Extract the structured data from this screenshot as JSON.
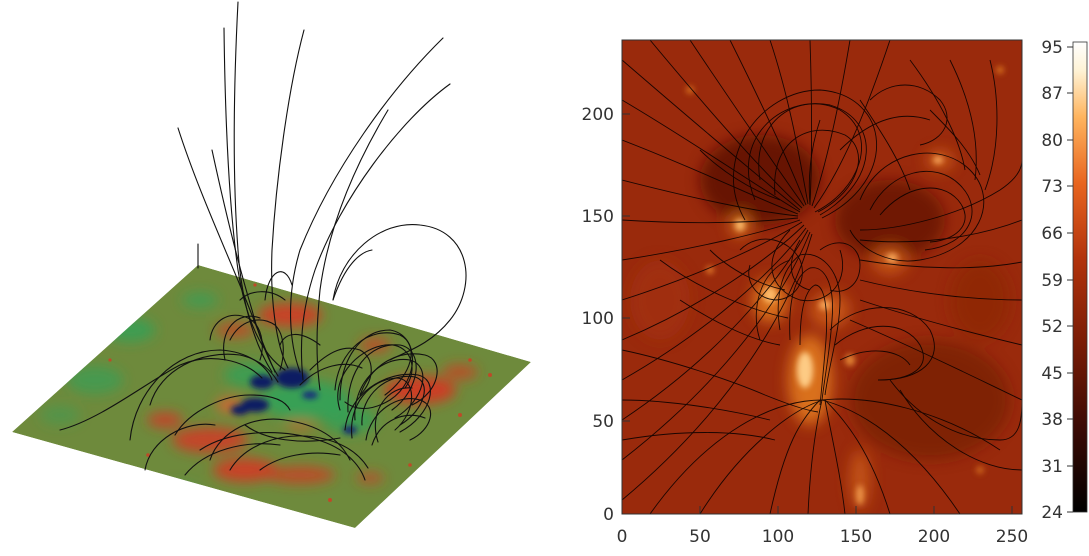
{
  "figure": {
    "left_panel": {
      "kind": "3d-field-line-rendering",
      "surface_colors": [
        "#6e8a3c",
        "#d23a24",
        "#2fa35a",
        "#0b1d63"
      ]
    },
    "right_panel": {
      "kind": "image-with-field-lines",
      "x_ticks": [
        "0",
        "50",
        "100",
        "150",
        "200",
        "250"
      ],
      "y_ticks": [
        "0",
        "50",
        "100",
        "150",
        "200"
      ],
      "colorbar_ticks": [
        "95",
        "87",
        "80",
        "73",
        "66",
        "59",
        "52",
        "45",
        "38",
        "31",
        "24"
      ],
      "colormap": [
        "#000000",
        "#3b0a04",
        "#7a1c06",
        "#b2330c",
        "#e8651f",
        "#ffb45e",
        "#fff3d6",
        "#ffffff"
      ]
    }
  }
}
